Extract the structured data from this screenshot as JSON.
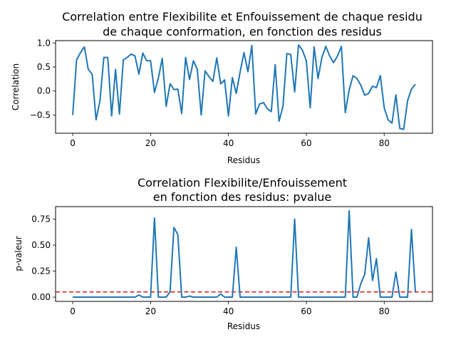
{
  "chart_data": [
    {
      "type": "line",
      "title_line1": "Correlation entre Flexibilite et Enfouissement de chaque residu",
      "title_line2": "de chaque conformation, en fonction des residus",
      "xlabel": "Residus",
      "ylabel": "Correlation",
      "xlim": [
        -4.4,
        92.4
      ],
      "ylim": [
        -0.88,
        1.05
      ],
      "xticks": [
        0,
        20,
        40,
        60,
        80
      ],
      "yticks": [
        -0.5,
        0.0,
        0.5,
        1.0
      ],
      "ytick_labels": [
        "−0.5",
        "0.0",
        "0.5",
        "1.0"
      ],
      "line_color": "#1f77b4",
      "series": [
        {
          "x": [
            0,
            1,
            2,
            3,
            4,
            5,
            6,
            7,
            8,
            9,
            10,
            11,
            12,
            13,
            14,
            15,
            16,
            17,
            18,
            19,
            20,
            21,
            22,
            23,
            24,
            25,
            26,
            27,
            28,
            29,
            30,
            31,
            32,
            33,
            34,
            35,
            36,
            37,
            38,
            39,
            40,
            41,
            42,
            43,
            44,
            45,
            46,
            47,
            48,
            49,
            50,
            51,
            52,
            53,
            54,
            55,
            56,
            57,
            58,
            59,
            60,
            61,
            62,
            63,
            64,
            65,
            66,
            67,
            68,
            69,
            70,
            71,
            72,
            73,
            74,
            75,
            76,
            77,
            78,
            79,
            80,
            81,
            82,
            83,
            84,
            85,
            86,
            87,
            88
          ],
          "values": [
            -0.5,
            0.65,
            0.8,
            0.92,
            0.45,
            0.35,
            -0.6,
            -0.2,
            0.7,
            0.7,
            -0.52,
            0.45,
            -0.48,
            0.65,
            0.7,
            0.77,
            0.73,
            0.35,
            0.79,
            0.63,
            0.63,
            -0.03,
            0.27,
            0.68,
            -0.32,
            0.15,
            0.03,
            0.04,
            -0.47,
            0.7,
            0.24,
            0.63,
            0.45,
            -0.5,
            0.42,
            0.3,
            0.2,
            0.69,
            0.15,
            0.23,
            -0.52,
            0.28,
            -0.05,
            0.4,
            0.8,
            0.4,
            0.95,
            -0.48,
            -0.27,
            -0.24,
            -0.37,
            -0.43,
            0.55,
            -0.63,
            -0.32,
            0.78,
            0.76,
            -0.02,
            0.96,
            0.85,
            0.63,
            -0.35,
            0.92,
            0.26,
            0.7,
            0.93,
            0.73,
            0.59,
            0.73,
            0.93,
            -0.45,
            0.02,
            0.32,
            0.26,
            0.12,
            -0.09,
            -0.05,
            0.1,
            0.07,
            0.32,
            -0.35,
            -0.6,
            -0.67,
            -0.08,
            -0.78,
            -0.8,
            -0.2,
            0.04,
            0.14
          ]
        }
      ]
    },
    {
      "type": "line",
      "title_line1": "Correlation Flexibilite/Enfouissement",
      "title_line2": "en fonction des residus: pvalue",
      "xlabel": "Residus",
      "ylabel": "p-valeur",
      "xlim": [
        -4.4,
        92.4
      ],
      "ylim": [
        -0.041,
        0.87
      ],
      "xticks": [
        0,
        20,
        40,
        60,
        80
      ],
      "yticks": [
        0.0,
        0.25,
        0.5,
        0.75
      ],
      "ytick_labels": [
        "0.00",
        "0.25",
        "0.50",
        "0.75"
      ],
      "line_color": "#1f77b4",
      "threshold": 0.05,
      "threshold_color": "#d62728",
      "series": [
        {
          "x": [
            0,
            1,
            2,
            3,
            4,
            5,
            6,
            7,
            8,
            9,
            10,
            11,
            12,
            13,
            14,
            15,
            16,
            17,
            18,
            19,
            20,
            21,
            22,
            23,
            24,
            25,
            26,
            27,
            28,
            29,
            30,
            31,
            32,
            33,
            34,
            35,
            36,
            37,
            38,
            39,
            40,
            41,
            42,
            43,
            44,
            45,
            46,
            47,
            48,
            49,
            50,
            51,
            52,
            53,
            54,
            55,
            56,
            57,
            58,
            59,
            60,
            61,
            62,
            63,
            64,
            65,
            66,
            67,
            68,
            69,
            70,
            71,
            72,
            73,
            74,
            75,
            76,
            77,
            78,
            79,
            80,
            81,
            82,
            83,
            84,
            85,
            86,
            87,
            88
          ],
          "values": [
            0.0,
            0.0,
            0.0,
            0.0,
            0.0,
            0.0,
            0.0,
            0.0,
            0.0,
            0.0,
            0.0,
            0.0,
            0.0,
            0.0,
            0.0,
            0.0,
            0.0,
            0.02,
            0.0,
            0.0,
            0.0,
            0.76,
            0.0,
            0.0,
            0.0,
            0.05,
            0.67,
            0.6,
            0.0,
            0.0,
            0.01,
            0.0,
            0.0,
            0.0,
            0.0,
            0.0,
            0.0,
            0.0,
            0.03,
            0.0,
            0.0,
            0.0,
            0.48,
            0.0,
            0.0,
            0.0,
            0.0,
            0.0,
            0.0,
            0.0,
            0.0,
            0.0,
            0.0,
            0.0,
            0.0,
            0.0,
            0.0,
            0.75,
            0.0,
            0.0,
            0.0,
            0.0,
            0.0,
            0.0,
            0.0,
            0.0,
            0.0,
            0.0,
            0.0,
            0.0,
            0.0,
            0.83,
            0.0,
            0.0,
            0.13,
            0.22,
            0.57,
            0.16,
            0.37,
            0.0,
            0.0,
            0.0,
            0.0,
            0.24,
            0.0,
            0.0,
            0.0,
            0.65,
            0.05
          ]
        }
      ]
    }
  ]
}
